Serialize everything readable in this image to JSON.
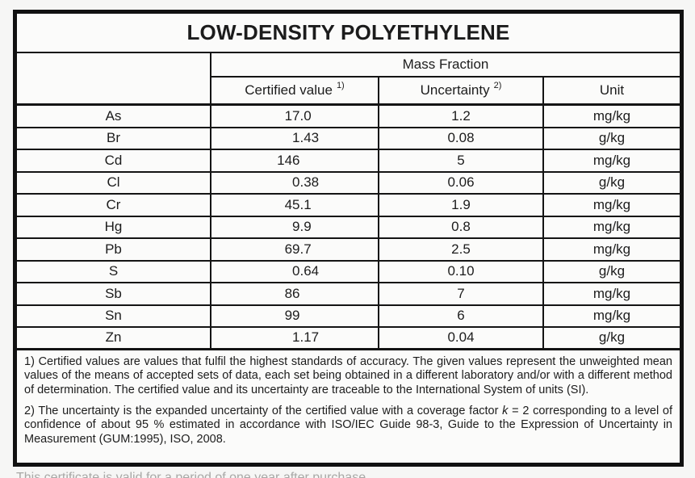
{
  "title": "LOW-DENSITY POLYETHYLENE",
  "table": {
    "group_header": "Mass Fraction",
    "columns": {
      "certified": "Certified value",
      "certified_sup": "1)",
      "uncertainty": "Uncertainty",
      "uncertainty_sup": "2)",
      "unit": "Unit"
    },
    "rows": [
      {
        "element": "As",
        "value": "17.0",
        "value_int": "17",
        "value_frac": ".0",
        "uncertainty": "1.2",
        "unit": "mg/kg"
      },
      {
        "element": "Br",
        "value": "1.43",
        "value_int": "1",
        "value_frac": ".43",
        "uncertainty": "0.08",
        "unit": "g/kg"
      },
      {
        "element": "Cd",
        "value": "146",
        "value_int": "146",
        "value_frac": "",
        "uncertainty": "5",
        "unit": "mg/kg"
      },
      {
        "element": "Cl",
        "value": "0.38",
        "value_int": "0",
        "value_frac": ".38",
        "uncertainty": "0.06",
        "unit": "g/kg"
      },
      {
        "element": "Cr",
        "value": "45.1",
        "value_int": "45",
        "value_frac": ".1",
        "uncertainty": "1.9",
        "unit": "mg/kg"
      },
      {
        "element": "Hg",
        "value": "9.9",
        "value_int": "9",
        "value_frac": ".9",
        "uncertainty": "0.8",
        "unit": "mg/kg"
      },
      {
        "element": "Pb",
        "value": "69.7",
        "value_int": "69",
        "value_frac": ".7",
        "uncertainty": "2.5",
        "unit": "mg/kg"
      },
      {
        "element": "S",
        "value": "0.64",
        "value_int": "0",
        "value_frac": ".64",
        "uncertainty": "0.10",
        "unit": "g/kg"
      },
      {
        "element": "Sb",
        "value": "86",
        "value_int": "86",
        "value_frac": "",
        "uncertainty": "7",
        "unit": "mg/kg"
      },
      {
        "element": "Sn",
        "value": "99",
        "value_int": "99",
        "value_frac": "",
        "uncertainty": "6",
        "unit": "mg/kg"
      },
      {
        "element": "Zn",
        "value": "1.17",
        "value_int": "1",
        "value_frac": ".17",
        "uncertainty": "0.04",
        "unit": "g/kg"
      }
    ]
  },
  "footnotes": {
    "note1": "1) Certified values are values that fulfil the highest standards of accuracy. The given values represent the unweighted mean values of the means of accepted sets of data, each set being obtained in a different laboratory and/or with a different method of determination. The certified value and its uncertainty are traceable to the International System of units (SI).",
    "note2_before_k": "2) The uncertainty is the expanded uncertainty of the certified value with a coverage factor ",
    "note2_k": "k",
    "note2_after_k": " = 2 corresponding to a level of confidence of about 95 % estimated in accordance with ISO/IEC Guide 98-3, Guide to the Expression of Uncertainty in Measurement (GUM:1995), ISO, 2008."
  },
  "footer_partial": "This certificate is valid for a period of one year after purchase."
}
